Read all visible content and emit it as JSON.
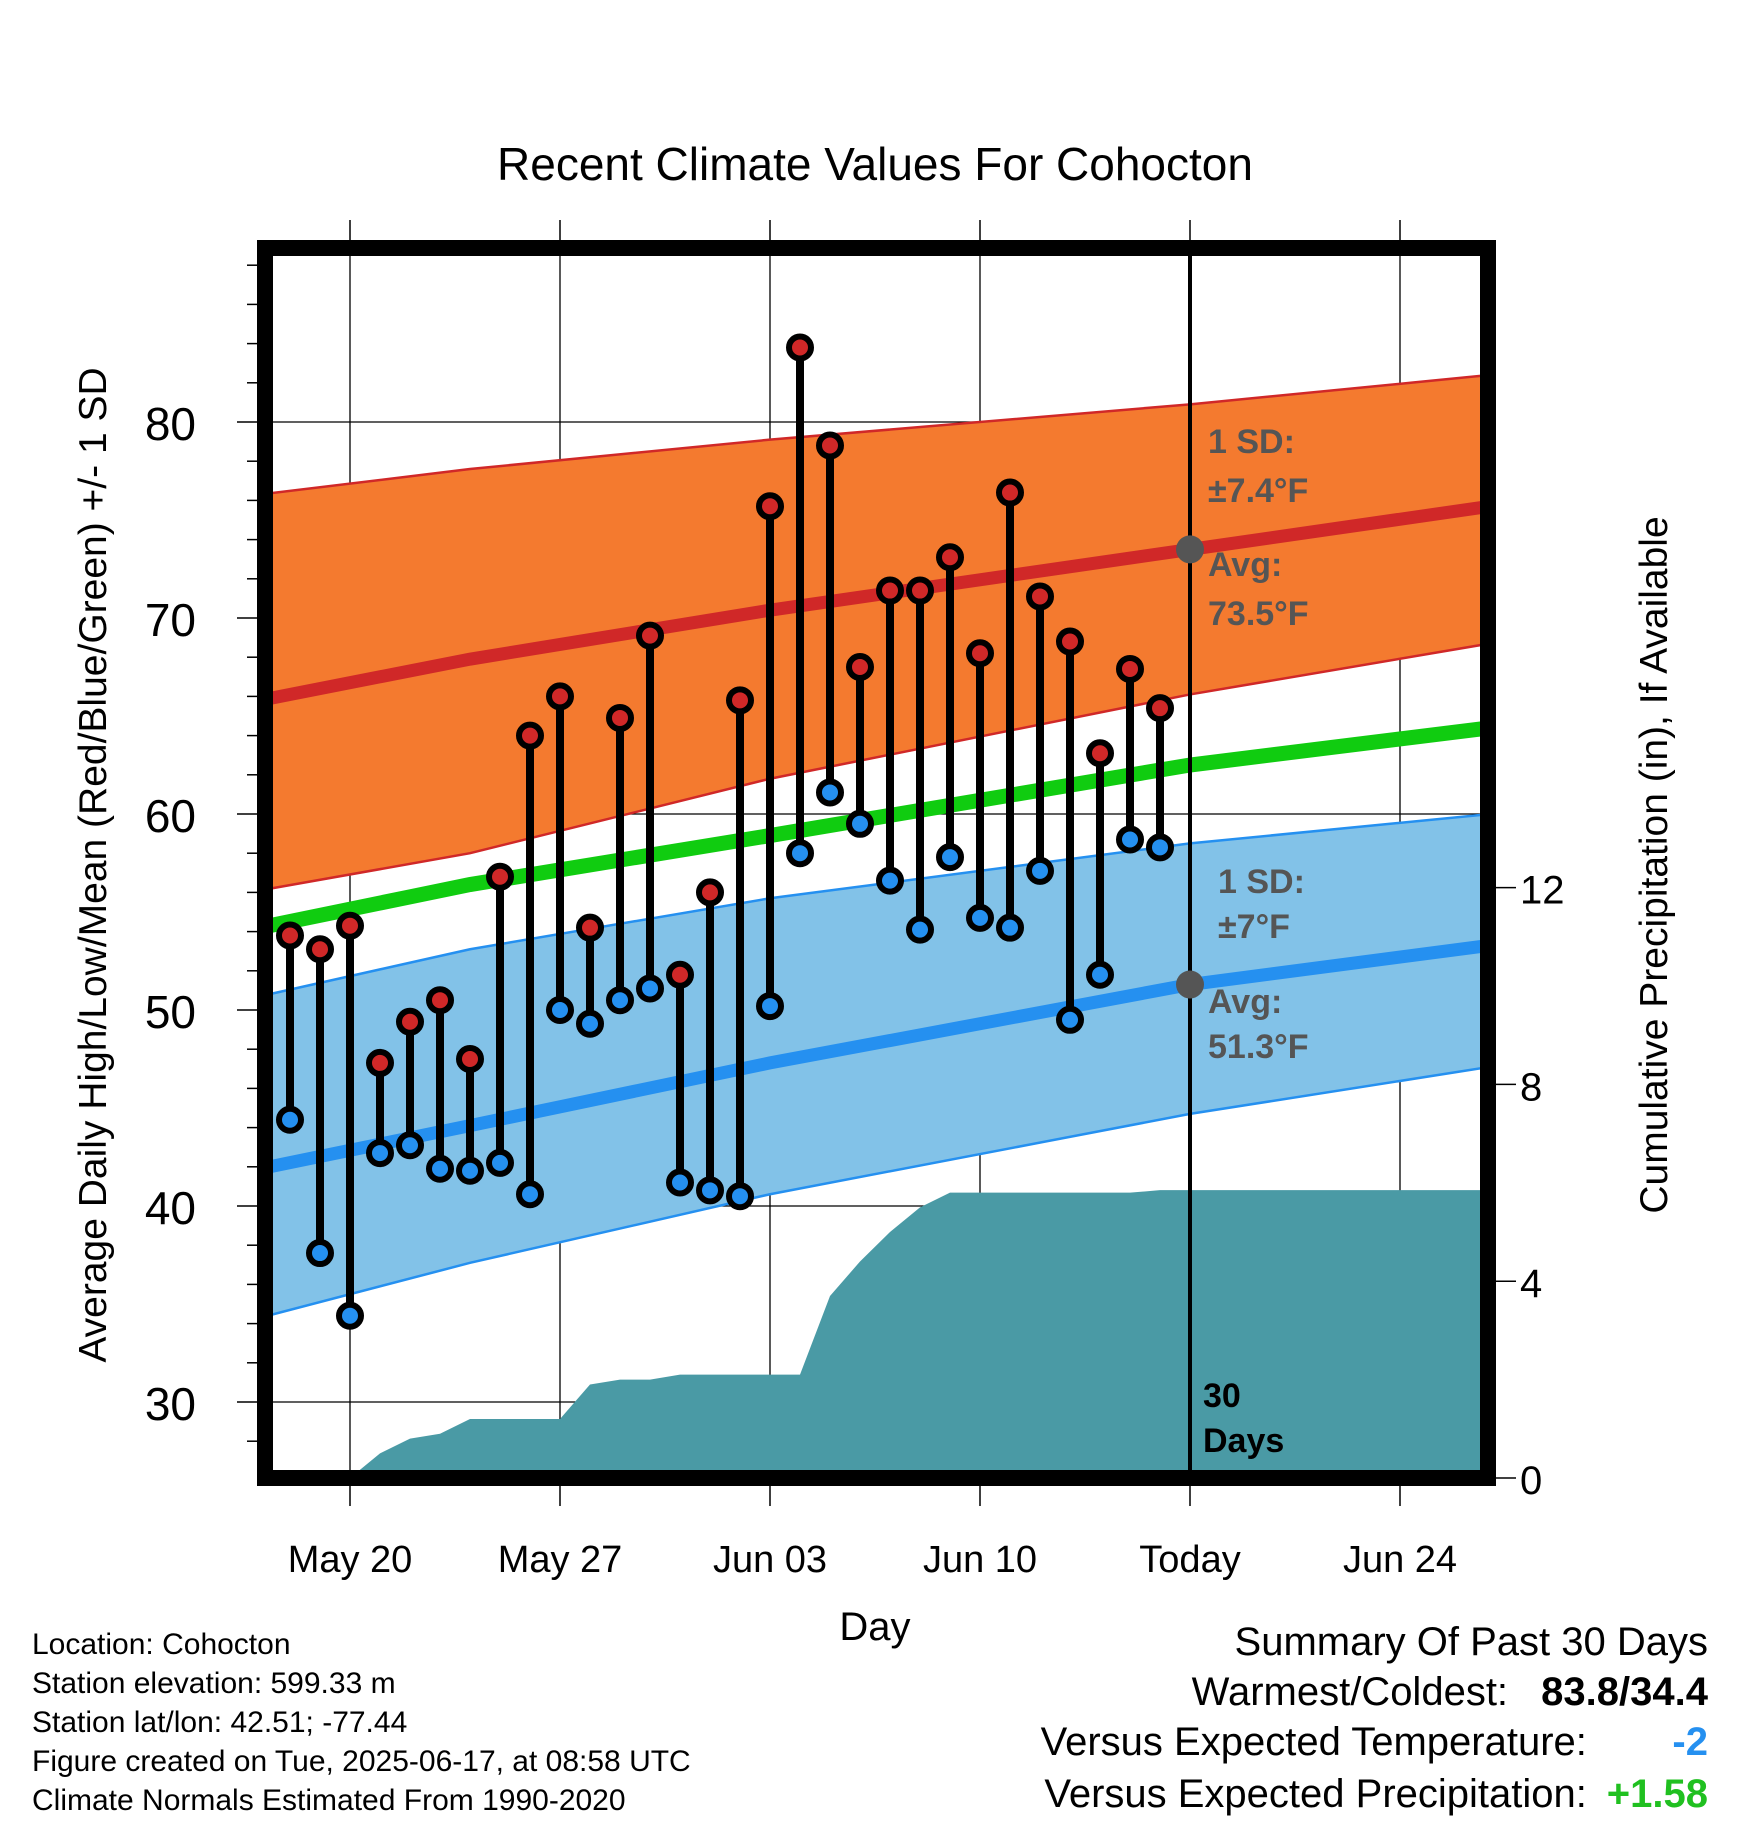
{
  "chart_data": {
    "type": "line",
    "title": "Recent Climate Values For Cohocton",
    "xlabel": "Day",
    "ylabel": "Average Daily High/Low/Mean (Red/Blue/Green) +/- 1 SD",
    "y2label": "Cumulative Precipitation (in), If Available",
    "ylim": [
      26.5,
      88.5
    ],
    "y2lim": [
      0,
      24
    ],
    "x_tick_labels": [
      "May 20",
      "May 27",
      "Jun 03",
      "Jun 10",
      "Today",
      "Jun 24"
    ],
    "y_ticks": [
      30,
      40,
      50,
      60,
      70,
      80
    ],
    "y2_ticks": [
      0,
      4,
      8,
      12
    ],
    "grid": true,
    "days": [
      "May 18",
      "May 19",
      "May 20",
      "May 21",
      "May 22",
      "May 23",
      "May 24",
      "May 25",
      "May 26",
      "May 27",
      "May 28",
      "May 29",
      "May 30",
      "May 31",
      "Jun 01",
      "Jun 02",
      "Jun 03",
      "Jun 04",
      "Jun 05",
      "Jun 06",
      "Jun 07",
      "Jun 08",
      "Jun 09",
      "Jun 10",
      "Jun 11",
      "Jun 12",
      "Jun 13",
      "Jun 14",
      "Jun 15",
      "Jun 16"
    ],
    "daily_high": [
      53.8,
      53.1,
      54.3,
      47.3,
      49.4,
      50.5,
      47.5,
      56.8,
      64.0,
      66.0,
      54.2,
      64.9,
      69.1,
      51.8,
      56.0,
      65.8,
      75.7,
      83.8,
      78.8,
      67.5,
      71.4,
      71.4,
      73.1,
      68.2,
      76.4,
      71.1,
      68.8,
      63.1,
      67.4,
      65.4
    ],
    "daily_low": [
      44.4,
      37.6,
      34.4,
      42.7,
      43.1,
      41.9,
      41.8,
      42.2,
      40.6,
      50.0,
      49.3,
      50.5,
      51.1,
      41.2,
      40.8,
      40.5,
      50.2,
      58.0,
      61.1,
      59.5,
      56.6,
      54.1,
      57.8,
      54.7,
      54.2,
      57.1,
      49.5,
      51.8,
      58.7,
      58.3
    ],
    "normal_high_band": {
      "x": [
        "May 17",
        "May 24",
        "Jun 03",
        "Jun 17",
        "Jun 27"
      ],
      "mean": [
        65.8,
        67.9,
        70.4,
        73.5,
        75.7
      ],
      "upper": [
        76.3,
        77.6,
        79.1,
        80.9,
        82.4
      ],
      "lower": [
        56.1,
        58.0,
        61.8,
        66.1,
        68.7
      ]
    },
    "normal_low_band": {
      "x": [
        "May 17",
        "May 24",
        "Jun 03",
        "Jun 17",
        "Jun 27"
      ],
      "mean": [
        41.9,
        44.1,
        47.3,
        51.3,
        53.3
      ],
      "upper": [
        50.7,
        53.1,
        55.7,
        58.5,
        60.0
      ],
      "lower": [
        34.3,
        37.1,
        40.6,
        44.7,
        47.1
      ]
    },
    "normal_mean_line": {
      "x": [
        "May 17",
        "May 24",
        "Jun 03",
        "Jun 17",
        "Jun 27"
      ],
      "values": [
        54.2,
        56.4,
        58.9,
        62.5,
        64.4
      ]
    },
    "cumulative_precip_series": {
      "x": [
        "May 19",
        "May 20",
        "May 21",
        "May 22",
        "May 23",
        "May 24",
        "May 25",
        "May 26",
        "May 27",
        "May 28",
        "May 29",
        "May 30",
        "May 31",
        "Jun 01",
        "Jun 02",
        "Jun 03",
        "Jun 04",
        "Jun 05",
        "Jun 06",
        "Jun 07",
        "Jun 08",
        "Jun 09",
        "Jun 10",
        "Jun 11",
        "Jun 12",
        "Jun 13",
        "Jun 14",
        "Jun 15",
        "Jun 16",
        "Jun 17",
        "Jun 27"
      ],
      "values": [
        0,
        0,
        0.5,
        0.8,
        0.9,
        1.2,
        1.2,
        1.2,
        1.2,
        1.9,
        2.0,
        2.0,
        2.1,
        2.1,
        2.1,
        2.1,
        2.1,
        3.7,
        4.4,
        5.0,
        5.5,
        5.8,
        5.8,
        5.8,
        5.8,
        5.8,
        5.8,
        5.8,
        5.85,
        5.85,
        5.85
      ]
    },
    "annotations": [
      {
        "lines": [
          "1 SD:",
          "±7.4°F"
        ]
      },
      {
        "lines": [
          "Avg:",
          "73.5°F"
        ]
      },
      {
        "lines": [
          "1 SD:",
          "±7°F"
        ]
      },
      {
        "lines": [
          "Avg:",
          "51.3°F"
        ]
      },
      {
        "lines": [
          "30",
          "Days"
        ]
      }
    ],
    "colors": {
      "high_band": "#f47a2f",
      "high_line": "#d02828",
      "low_band": "#82c2e8",
      "low_line": "#2590f0",
      "mean_line": "#10cc10",
      "precip": "#4a9aa5",
      "high_marker": "#d02828",
      "low_marker": "#2590f0",
      "annotation_text": "#555555"
    }
  },
  "metadata": [
    "Location: Cohocton",
    "Station elevation: 599.33 m",
    "Station lat/lon: 42.51; -77.44",
    "Figure created on Tue, 2025-06-17, at 08:58 UTC",
    "Climate Normals Estimated From 1990-2020"
  ],
  "summary": {
    "title": "Summary Of Past 30 Days",
    "warmest_coldest_label": "Warmest/Coldest:",
    "warmest_coldest_value": "83.8/34.4",
    "temp_label": "Versus Expected Temperature:",
    "temp_value": "-2",
    "temp_color": "#2590f0",
    "precip_label": "Versus Expected Precipitation:",
    "precip_value": "+1.58",
    "precip_color": "#20c020"
  }
}
